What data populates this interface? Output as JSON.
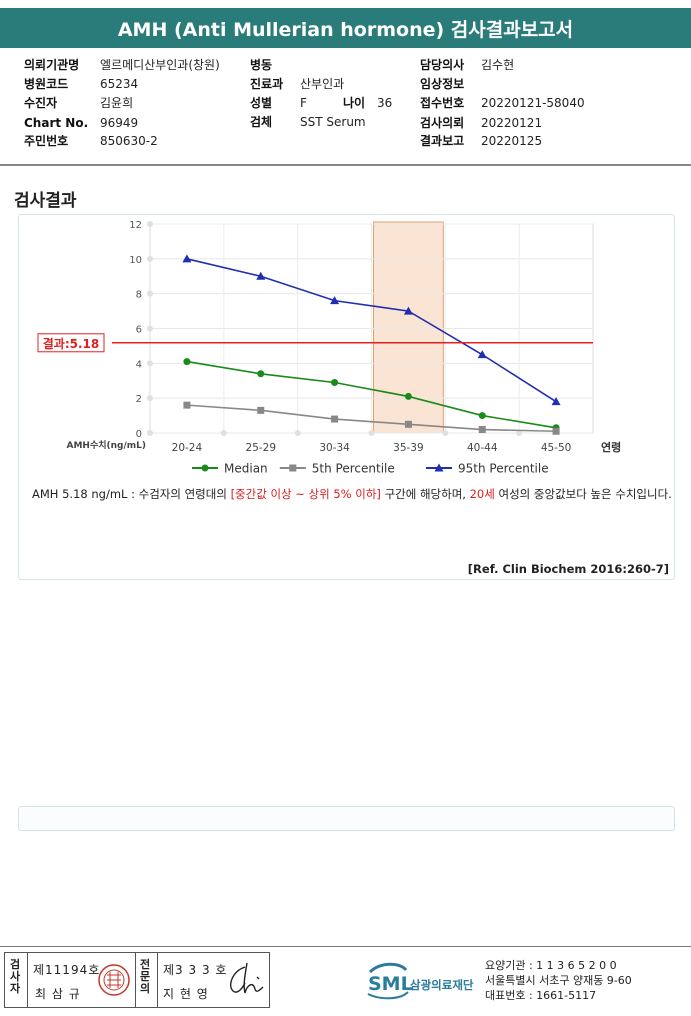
{
  "report": {
    "title": "AMH (Anti Mullerian hormone) 검사결과보고서"
  },
  "info": {
    "institution_label": "의뢰기관명",
    "institution": "엘르메디산부인과(창원)",
    "code_label": "병원코드",
    "code": "65234",
    "patient_label": "수진자",
    "patient": "김윤희",
    "chart_label": "Chart No.",
    "chart": "96949",
    "id_label": "주민번호",
    "id": "850630-2",
    "ward_label": "병동",
    "ward": "",
    "dept_label": "진료과",
    "dept": "산부인과",
    "sex_label": "성별",
    "sex": "F",
    "age_label": "나이",
    "age": "36",
    "specimen_label": "검체",
    "specimen": "SST Serum",
    "doctor_label": "담당의사",
    "doctor": "김수현",
    "clinical_label": "임상정보",
    "clinical": "",
    "receipt_label": "접수번호",
    "receipt": "20220121-58040",
    "request_label": "검사의뢰",
    "request": "20220121",
    "result_label": "결과보고",
    "result": "20220125"
  },
  "section_title": "검사결과",
  "chart_data": {
    "type": "line",
    "categories": [
      "20-24",
      "25-29",
      "30-34",
      "35-39",
      "40-44",
      "45-50"
    ],
    "xlabel": "연령",
    "ylabel": "AMH수치(ng/mL)",
    "ylim": [
      0,
      12
    ],
    "yticks": [
      0,
      2,
      4,
      6,
      8,
      10,
      12
    ],
    "grid": true,
    "legend_position": "bottom",
    "series": [
      {
        "name": "Median",
        "color": "#1a8a1a",
        "marker": "circle",
        "values": [
          4.1,
          3.4,
          2.9,
          2.1,
          1.0,
          0.3
        ]
      },
      {
        "name": "5th Percentile",
        "color": "#888888",
        "marker": "square",
        "values": [
          1.6,
          1.3,
          0.8,
          0.5,
          0.2,
          0.1
        ]
      },
      {
        "name": "95th Percentile",
        "color": "#1f2fb0",
        "marker": "triangle",
        "values": [
          10.0,
          9.0,
          7.6,
          7.0,
          4.5,
          1.8
        ]
      }
    ],
    "highlight_category": "35-39",
    "result_line": {
      "value": 5.18,
      "label": "결과:5.18",
      "color": "#e02020"
    }
  },
  "note": {
    "p1": "AMH  5.18 ng/mL : 수검자의 연령대의 ",
    "p2": "[중간값 이상 ~ 상위 5% 이하]",
    "p3": " 구간에 해당하며, ",
    "p4": "20세",
    "p5": " 여성의 중앙값보다 높은 수치입니다."
  },
  "reference": "[Ref. Clin Biochem 2016:260-7]",
  "signature": {
    "examiner_label": "검사자",
    "examiner_no": "제11194호",
    "examiner_name": "최 삼 규",
    "confirm_label": "전문의",
    "confirm_no": "제3 3 3 호",
    "confirm_name": "지 현 영"
  },
  "org": {
    "logo": "SML",
    "name": "삼광의료재단",
    "code_line": "요양기관 : 1 1 3 6 5 2 0 0",
    "address": "서울특별시 서초구 양재동 9-60",
    "phone": "대표번호 : 1661-5117",
    "brand_color": "#2a7c9e"
  }
}
